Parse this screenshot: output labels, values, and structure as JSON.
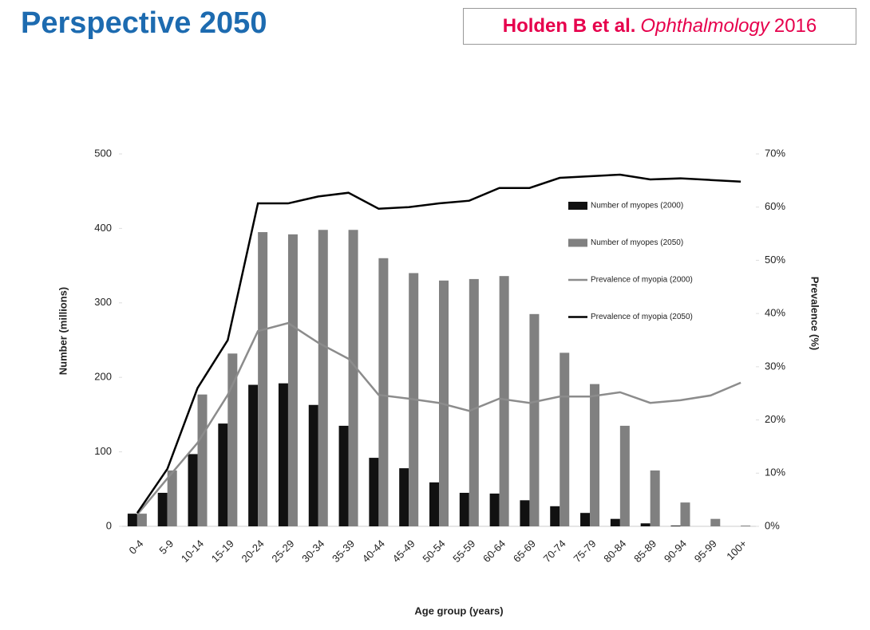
{
  "header": {
    "title": "Perspective 2050",
    "citation": {
      "authors": "Holden B et al.",
      "journal": "Ophthalmology",
      "year": "2016"
    }
  },
  "chart_data": {
    "type": "bar",
    "categories": [
      "0-4",
      "5-9",
      "10-14",
      "15-19",
      "20-24",
      "25-29",
      "30-34",
      "35-39",
      "40-44",
      "45-49",
      "50-54",
      "55-59",
      "60-64",
      "65-69",
      "70-74",
      "75-79",
      "80-84",
      "85-89",
      "90-94",
      "95-99",
      "100+"
    ],
    "series": [
      {
        "name": "Number of myopes (2000)",
        "type": "bar",
        "color": "#111111",
        "values": [
          17,
          45,
          97,
          138,
          190,
          192,
          163,
          135,
          92,
          78,
          59,
          45,
          44,
          35,
          27,
          18,
          10,
          4,
          1,
          0,
          0
        ]
      },
      {
        "name": "Number of myopes (2050)",
        "type": "bar",
        "color": "#808080",
        "values": [
          17,
          75,
          177,
          232,
          395,
          392,
          398,
          398,
          360,
          340,
          330,
          332,
          336,
          285,
          233,
          191,
          135,
          75,
          32,
          10,
          1
        ]
      },
      {
        "name": "Prevalence of myopia (2000)",
        "type": "line",
        "axis": "y2",
        "color": "#8c8c8c",
        "values": [
          2.2,
          9,
          15.7,
          24.7,
          36.7,
          38.2,
          34.5,
          31.5,
          24.7,
          24,
          23.2,
          21.7,
          24,
          23.2,
          24.4,
          24.4,
          25.2,
          23.2,
          23.7,
          24.6,
          27
        ]
      },
      {
        "name": "Prevalence of myopia (2050)",
        "type": "line",
        "axis": "y2",
        "color": "#000000",
        "values": [
          2.5,
          10.8,
          26,
          35,
          60.7,
          60.7,
          62,
          62.7,
          59.7,
          60,
          60.7,
          61.2,
          63.6,
          63.6,
          65.5,
          65.8,
          66.1,
          65.2,
          65.4,
          65.1,
          64.8
        ]
      }
    ],
    "ylim": [
      0,
      500
    ],
    "yticks": [
      0,
      100,
      200,
      300,
      400,
      500
    ],
    "y2lim": [
      0,
      70
    ],
    "y2ticks": [
      {
        "value": 0,
        "label": "0%"
      },
      {
        "value": 10,
        "label": "10%"
      },
      {
        "value": 20,
        "label": "20%"
      },
      {
        "value": 30,
        "label": "30%"
      },
      {
        "value": 40,
        "label": "40%"
      },
      {
        "value": 50,
        "label": "50%"
      },
      {
        "value": 60,
        "label": "60%"
      },
      {
        "value": 70,
        "label": "70%"
      }
    ],
    "y_label": "Number (millions)",
    "y2_label": "Prevalence (%)",
    "x_label": "Age group (years)",
    "grid": false
  }
}
